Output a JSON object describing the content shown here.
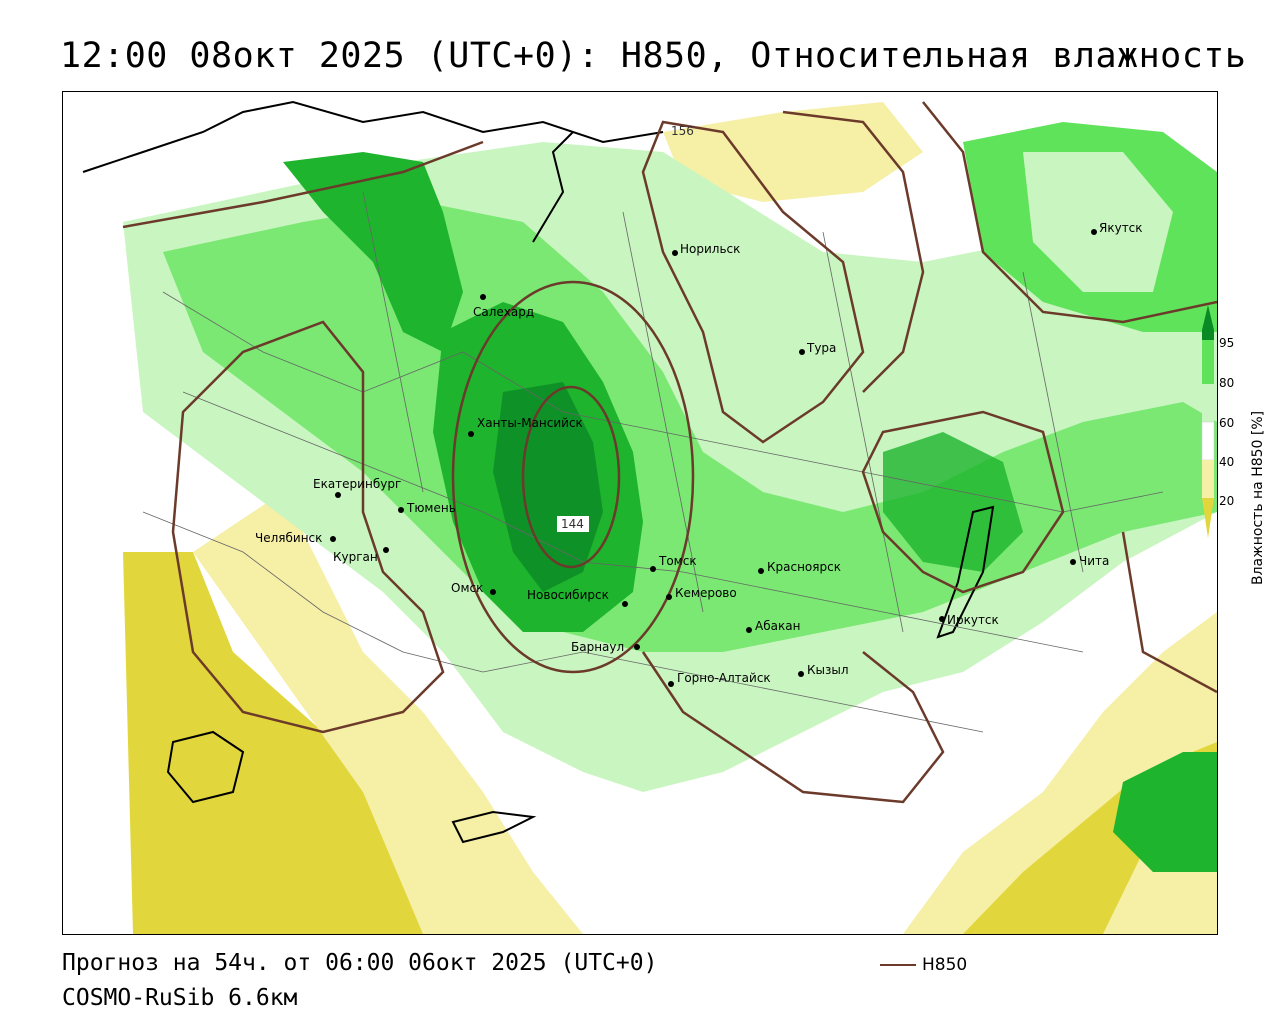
{
  "header": {
    "title": "12:00 08окт 2025 (UTC+0): H850, Относительная влажность"
  },
  "map": {
    "contour_labels": [
      "156",
      "144"
    ],
    "cities": [
      {
        "name": "Якутск"
      },
      {
        "name": "Норильск"
      },
      {
        "name": "Салехард"
      },
      {
        "name": "Тура"
      },
      {
        "name": "Ханты-Мансийск"
      },
      {
        "name": "Екатеринбург"
      },
      {
        "name": "Тюмень"
      },
      {
        "name": "Челябинск"
      },
      {
        "name": "Курган"
      },
      {
        "name": "Омск"
      },
      {
        "name": "Новосибирск"
      },
      {
        "name": "Томск"
      },
      {
        "name": "Кемерово"
      },
      {
        "name": "Красноярск"
      },
      {
        "name": "Барнаул"
      },
      {
        "name": "Абакан"
      },
      {
        "name": "Горно-Алтайск"
      },
      {
        "name": "Кызыл"
      },
      {
        "name": "Иркутск"
      },
      {
        "name": "Чита"
      }
    ],
    "colors": {
      "dry_dark": "#e1d73c",
      "dry_light": "#f6efa6",
      "neutral": "#ffffff",
      "moist_light": "#c9f5c0",
      "moist": "#5fe35a",
      "wet": "#1eb42d",
      "very_wet": "#0a8a25",
      "isoline": "#6b3a2a"
    }
  },
  "legend": {
    "ticks": [
      "95",
      "80",
      "60",
      "40",
      "20"
    ],
    "caption": "Влажность на H850 [%]",
    "isoline_label": "H850"
  },
  "footer": {
    "forecast": "Прогноз на 54ч. от 06:00 06окт 2025 (UTC+0)",
    "model": "COSMO-RuSib 6.6км"
  }
}
